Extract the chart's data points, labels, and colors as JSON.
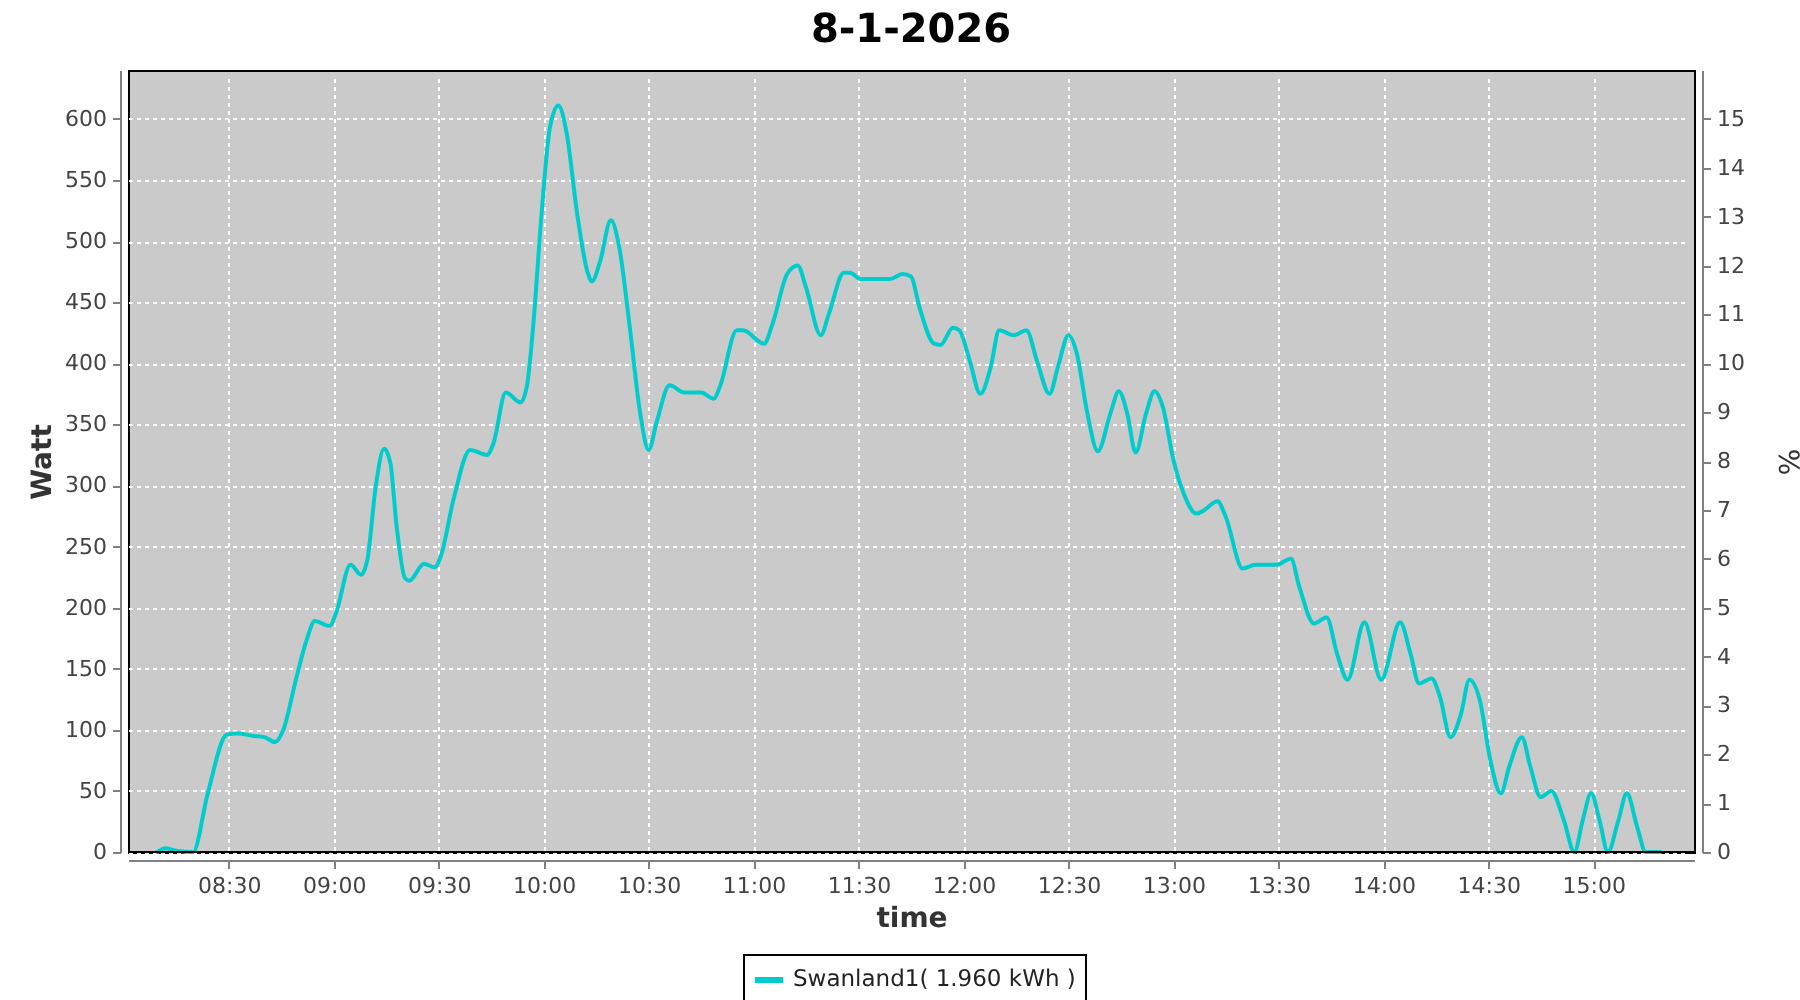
{
  "chart_data": {
    "type": "line",
    "title": "8-1-2026",
    "xlabel": "time",
    "ylabel": "Watt",
    "y2label": "%",
    "xlim": [
      8.02,
      15.48
    ],
    "xticks": [
      {
        "value": 8.5,
        "label": "08:30"
      },
      {
        "value": 9,
        "label": "09:00"
      },
      {
        "value": 9.5,
        "label": "09:30"
      },
      {
        "value": 10,
        "label": "10:00"
      },
      {
        "value": 10.5,
        "label": "10:30"
      },
      {
        "value": 11,
        "label": "11:00"
      },
      {
        "value": 11.5,
        "label": "11:30"
      },
      {
        "value": 12,
        "label": "12:00"
      },
      {
        "value": 12.5,
        "label": "12:30"
      },
      {
        "value": 13,
        "label": "13:00"
      },
      {
        "value": 13.5,
        "label": "13:30"
      },
      {
        "value": 14,
        "label": "14:00"
      },
      {
        "value": 14.5,
        "label": "14:30"
      },
      {
        "value": 15,
        "label": "15:00"
      }
    ],
    "ylim": [
      0,
      640
    ],
    "yticks": [
      0,
      50,
      100,
      150,
      200,
      250,
      300,
      350,
      400,
      450,
      500,
      550,
      600
    ],
    "y2lim": [
      0,
      16
    ],
    "y2ticks": [
      0,
      1,
      2,
      3,
      4,
      5,
      6,
      7,
      8,
      9,
      10,
      11,
      12,
      13,
      14,
      15
    ],
    "grid": true,
    "legend": "bottom",
    "series": [
      {
        "name": "Swanland1( 1.960 kWh )",
        "color": "#00cccc",
        "x": [
          8.16,
          8.2,
          8.25,
          8.33,
          8.4,
          8.49,
          8.54,
          8.62,
          8.67,
          8.72,
          8.76,
          8.82,
          8.87,
          8.91,
          8.98,
          9.01,
          9.08,
          9.13,
          9.16,
          9.2,
          9.24,
          9.27,
          9.3,
          9.34,
          9.36,
          9.43,
          9.48,
          9.51,
          9.57,
          9.65,
          9.73,
          9.76,
          9.82,
          9.89,
          9.92,
          9.95,
          9.99,
          10.03,
          10.07,
          10.11,
          10.16,
          10.21,
          10.23,
          10.27,
          10.32,
          10.36,
          10.41,
          10.46,
          10.5,
          10.54,
          10.6,
          10.67,
          10.75,
          10.81,
          10.84,
          10.92,
          10.95,
          11.05,
          11.09,
          11.16,
          11.21,
          11.25,
          11.32,
          11.36,
          11.43,
          11.46,
          11.51,
          11.65,
          11.71,
          11.75,
          11.79,
          11.86,
          11.89,
          11.95,
          11.98,
          12.03,
          12.08,
          12.13,
          12.17,
          12.24,
          12.3,
          12.35,
          12.41,
          12.45,
          12.5,
          12.54,
          12.59,
          12.64,
          12.7,
          12.74,
          12.78,
          12.82,
          12.87,
          12.91,
          12.95,
          13.0,
          13.05,
          13.11,
          13.14,
          13.21,
          13.25,
          13.33,
          13.39,
          13.49,
          13.56,
          13.6,
          13.67,
          13.73,
          13.78,
          13.83,
          13.91,
          13.99,
          14.08,
          14.13,
          14.17,
          14.23,
          14.27,
          14.32,
          14.37,
          14.41,
          14.46,
          14.51,
          14.56,
          14.6,
          14.66,
          14.7,
          14.75,
          14.8,
          14.86,
          14.91,
          14.95,
          14.99,
          15.03,
          15.07,
          15.12,
          15.16,
          15.21,
          15.25,
          15.32
        ],
        "values": [
          0,
          3,
          1,
          0,
          48,
          96,
          97,
          95,
          94,
          90,
          100,
          141,
          173,
          189,
          185,
          195,
          235,
          227,
          239,
          299,
          330,
          318,
          266,
          224,
          222,
          236,
          233,
          242,
          288,
          329,
          325,
          334,
          376,
          368,
          381,
          430,
          522,
          593,
          611,
          588,
          522,
          474,
          467,
          484,
          517,
          495,
          430,
          359,
          329,
          353,
          382,
          376,
          376,
          371,
          381,
          427,
          427,
          416,
          432,
          473,
          480,
          462,
          423,
          441,
          474,
          474,
          469,
          469,
          473,
          471,
          446,
          416,
          415,
          429,
          427,
          402,
          375,
          397,
          427,
          423,
          427,
          402,
          375,
          397,
          423,
          408,
          359,
          328,
          359,
          377,
          359,
          327,
          359,
          377,
          364,
          321,
          293,
          277,
          279,
          287,
          274,
          232,
          235,
          235,
          240,
          217,
          187,
          192,
          162,
          141,
          188,
          141,
          188,
          162,
          138,
          142,
          127,
          94,
          113,
          141,
          124,
          75,
          48,
          70,
          94,
          70,
          45,
          50,
          26,
          0,
          26,
          48,
          26,
          0,
          26,
          48,
          20,
          0,
          0
        ]
      }
    ]
  }
}
